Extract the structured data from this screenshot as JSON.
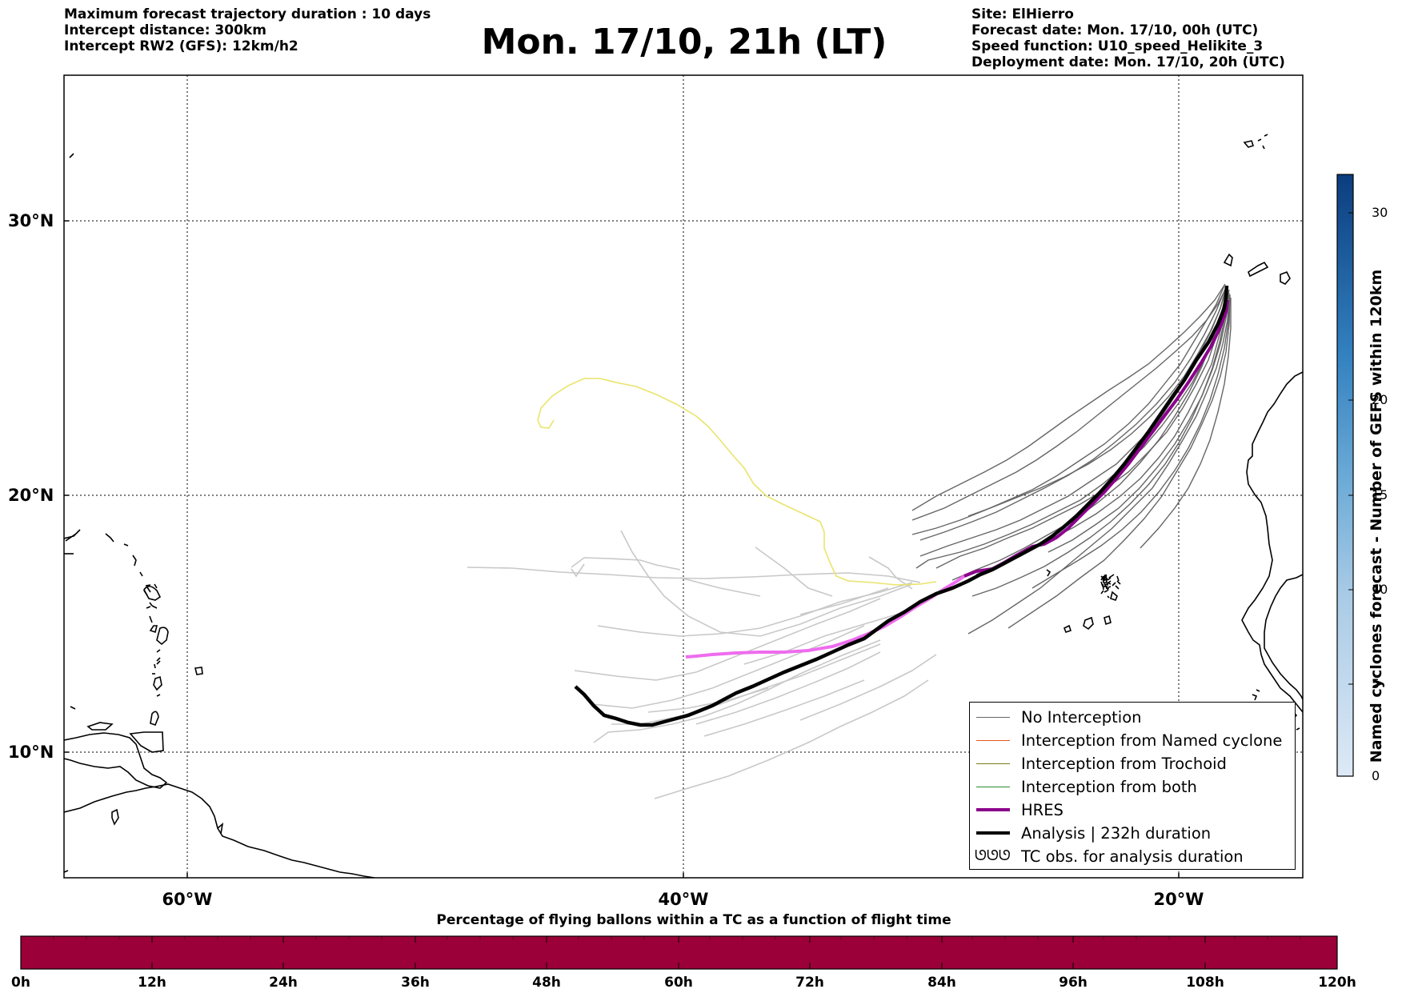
{
  "header": {
    "info_left": [
      "Maximum forecast trajectory duration : 10 days",
      "Intercept distance: 300km",
      "Intercept RW2 (GFS):  12km/h2"
    ],
    "title": "Mon. 17/10, 21h (LT)",
    "info_right": [
      "Site: ElHierro",
      "Forecast date: Mon. 17/10, 00h (UTC)",
      "Speed function: U10_speed_Helikite_3",
      "Deployment date: Mon. 17/10, 20h (UTC)"
    ]
  },
  "map": {
    "lat_labels": [
      "30°N",
      "20°N",
      "10°N"
    ],
    "lon_labels": [
      "60°W",
      "40°W",
      "20°W"
    ],
    "lat_range": [
      4.5,
      33.8
    ],
    "lon_range": [
      -65,
      -15
    ],
    "grid": true,
    "colors": {
      "analysis": "#000000",
      "hres_dark": "#8b008b",
      "hres_light": "#ee6cee",
      "no_interception": "#666666",
      "faded_track": "#c8c8c8",
      "yellow_track": "#e9e46c",
      "named_cyclone": "#e8541b",
      "trochoid": "#7a7a16",
      "both": "#2e8b2e"
    }
  },
  "legend": {
    "items": [
      {
        "label": "No Interception",
        "color": "#666666",
        "width": 1.2
      },
      {
        "label": "Interception from Named cyclone",
        "color": "#e8541b",
        "width": 1.2
      },
      {
        "label": "Interception from Trochoid",
        "color": "#7a7a16",
        "width": 1.2
      },
      {
        "label": "Interception from both",
        "color": "#2e8b2e",
        "width": 1.2
      },
      {
        "label": "HRES",
        "color": "#8b008b",
        "width": 4
      },
      {
        "label": "Analysis | 232h duration",
        "color": "#000000",
        "width": 4
      }
    ],
    "tc_obs": {
      "symbol": "ᘎᘎᘎ",
      "label": "TC obs. for analysis duration"
    }
  },
  "colorbar": {
    "title": "Named cyclones forecast - Number of GEFS within 120km",
    "ticks": [
      "0",
      "5",
      "10",
      "15",
      "20",
      "30"
    ],
    "range": [
      0,
      33
    ]
  },
  "time_bar": {
    "title": "Percentage of flying ballons within a TC as a function of flight time",
    "ticks": [
      "0h",
      "12h",
      "24h",
      "36h",
      "48h",
      "60h",
      "72h",
      "84h",
      "96h",
      "108h",
      "120h"
    ],
    "fill_color": "#9b0038"
  }
}
